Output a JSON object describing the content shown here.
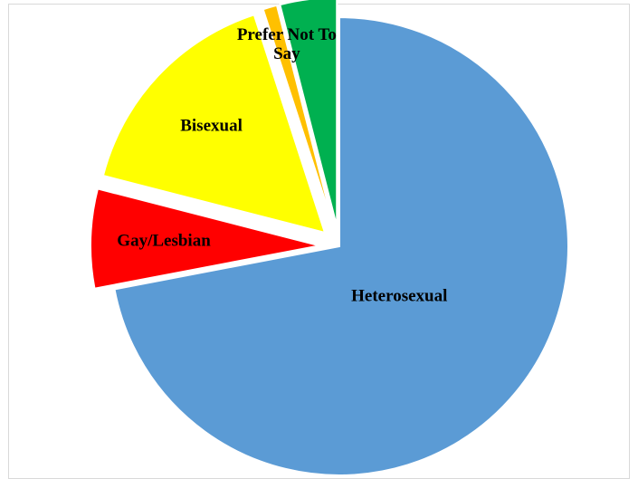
{
  "chart_data": {
    "type": "pie",
    "categories": [
      "Heterosexual",
      "Gay/Lesbian",
      "Bisexual",
      null,
      "Prefer Not To Say"
    ],
    "values": [
      72,
      7,
      16,
      1,
      4
    ],
    "colors": [
      "#5b9bd5",
      "#ff0000",
      "#ffff00",
      "#ffc000",
      "#00b050"
    ]
  }
}
